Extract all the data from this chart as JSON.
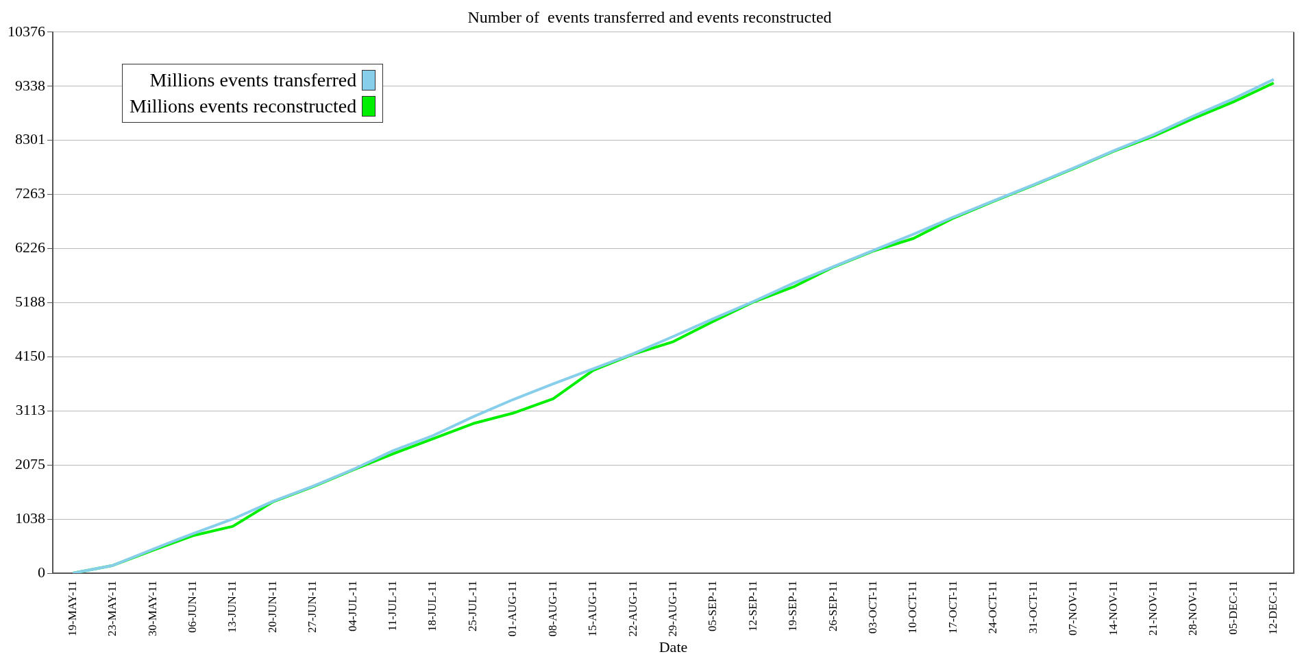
{
  "chart_data": {
    "type": "line",
    "title": "Number of  events transferred and events reconstructed",
    "xlabel": "Date",
    "categories": [
      "19-MAY-11",
      "23-MAY-11",
      "30-MAY-11",
      "06-JUN-11",
      "13-JUN-11",
      "20-JUN-11",
      "27-JUN-11",
      "04-JUL-11",
      "11-JUL-11",
      "18-JUL-11",
      "25-JUL-11",
      "01-AUG-11",
      "08-AUG-11",
      "15-AUG-11",
      "22-AUG-11",
      "29-AUG-11",
      "05-SEP-11",
      "12-SEP-11",
      "19-SEP-11",
      "26-SEP-11",
      "03-OCT-11",
      "10-OCT-11",
      "17-OCT-11",
      "24-OCT-11",
      "31-OCT-11",
      "07-NOV-11",
      "14-NOV-11",
      "21-NOV-11",
      "28-NOV-11",
      "05-DEC-11",
      "12-DEC-11"
    ],
    "series": [
      {
        "name": "Millions events transferred",
        "color": "#87ceeb",
        "values": [
          0,
          150,
          460,
          760,
          1040,
          1380,
          1670,
          1990,
          2350,
          2640,
          3000,
          3330,
          3630,
          3920,
          4210,
          4540,
          4880,
          5210,
          5560,
          5880,
          6190,
          6500,
          6830,
          7140,
          7450,
          7770,
          8100,
          8410,
          8770,
          9100,
          9470
        ]
      },
      {
        "name": "Millions events reconstructed",
        "color": "#00ee00",
        "values": [
          0,
          150,
          440,
          720,
          900,
          1370,
          1660,
          1980,
          2290,
          2580,
          2870,
          3070,
          3345,
          3890,
          4200,
          4440,
          4830,
          5200,
          5490,
          5870,
          6180,
          6420,
          6810,
          7130,
          7440,
          7760,
          8090,
          8380,
          8720,
          9040,
          9400
        ]
      }
    ],
    "ylim": [
      0,
      10376
    ],
    "yticks": [
      0,
      1038,
      2075,
      3113,
      4150,
      5188,
      6226,
      7263,
      8301,
      9338,
      10376
    ],
    "grid": "y",
    "legend": "top left",
    "marker": "none",
    "line_style": "solid"
  }
}
